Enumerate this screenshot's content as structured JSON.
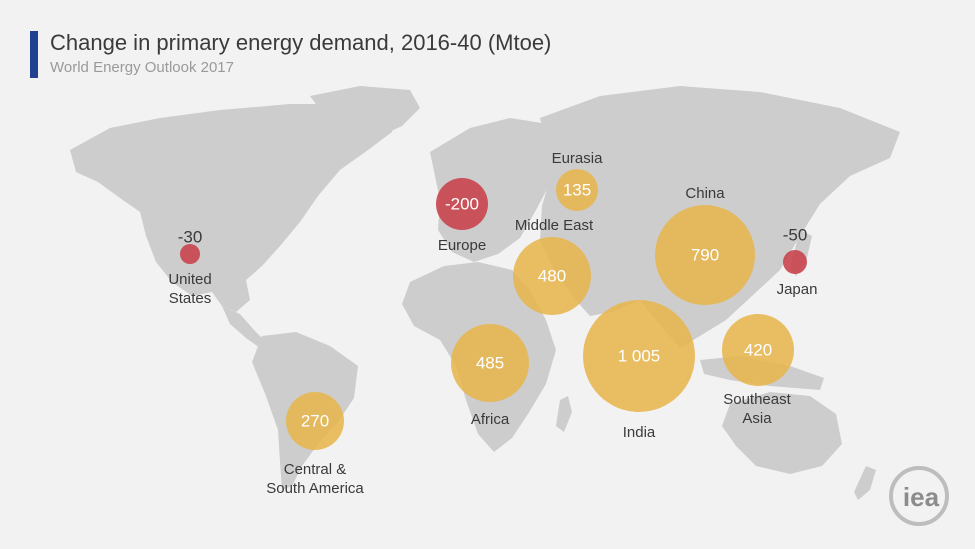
{
  "header": {
    "title": "Change in primary energy demand, 2016-40 (Mtoe)",
    "subtitle": "World Energy Outlook 2017"
  },
  "colors": {
    "accent": "#20418f",
    "increase": "#e8b54a",
    "decrease": "#c9444d",
    "land": "#cdcdcd",
    "background": "#f2f2f2"
  },
  "regions": [
    {
      "id": "united-states",
      "value": -30,
      "label": "-30",
      "name": [
        "United",
        "States"
      ]
    },
    {
      "id": "central-south-america",
      "value": 270,
      "label": "270",
      "name": [
        "Central &",
        "South America"
      ]
    },
    {
      "id": "europe",
      "value": -200,
      "label": "-200",
      "name": [
        "Europe"
      ]
    },
    {
      "id": "eurasia",
      "value": 135,
      "label": "135",
      "name": [
        "Eurasia"
      ]
    },
    {
      "id": "middle-east",
      "value": 480,
      "label": "480",
      "name": [
        "Middle East"
      ]
    },
    {
      "id": "africa",
      "value": 485,
      "label": "485",
      "name": [
        "Africa"
      ]
    },
    {
      "id": "india",
      "value": 1005,
      "label": "1 005",
      "name": [
        "India"
      ]
    },
    {
      "id": "china",
      "value": 790,
      "label": "790",
      "name": [
        "China"
      ]
    },
    {
      "id": "southeast-asia",
      "value": 420,
      "label": "420",
      "name": [
        "Southeast",
        "Asia"
      ]
    },
    {
      "id": "japan",
      "value": -50,
      "label": "-50",
      "name": [
        "Japan"
      ]
    }
  ],
  "logo": {
    "text": "iea"
  }
}
